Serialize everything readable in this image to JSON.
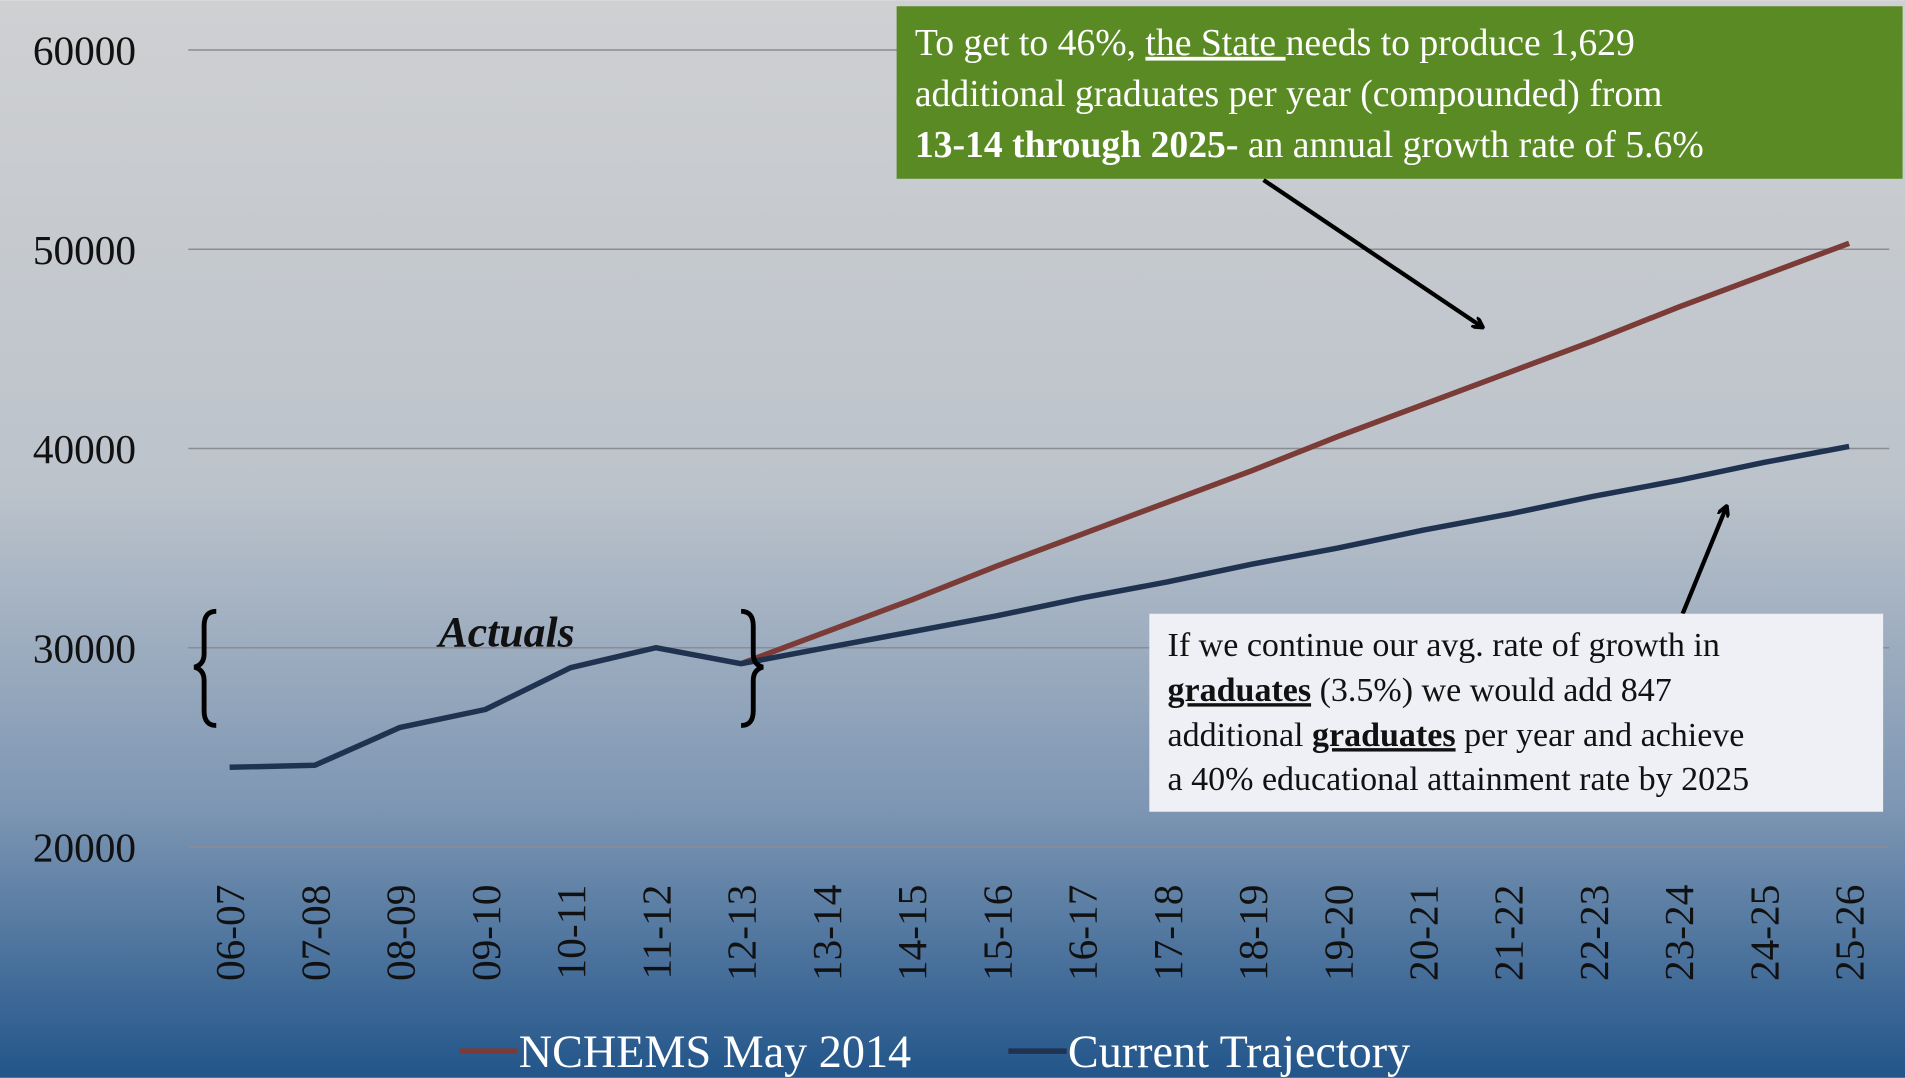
{
  "chart_data": {
    "type": "line",
    "categories": [
      "06-07",
      "07-08",
      "08-09",
      "09-10",
      "10-11",
      "11-12",
      "12-13",
      "13-14",
      "14-15",
      "15-16",
      "16-17",
      "17-18",
      "18-19",
      "19-20",
      "20-21",
      "21-22",
      "22-23",
      "23-24",
      "24-25",
      "25-26"
    ],
    "series": [
      {
        "name": "NCHEMS May 2014",
        "color": "#7b3b36",
        "values": [
          null,
          null,
          null,
          null,
          null,
          null,
          29200,
          30800,
          32400,
          34100,
          35700,
          37300,
          38900,
          40600,
          42200,
          43800,
          45400,
          47100,
          48700,
          50300
        ]
      },
      {
        "name": "Current Trajectory",
        "color": "#1f3350",
        "values": [
          24000,
          24100,
          26000,
          26900,
          29000,
          30000,
          29200,
          30000,
          30800,
          31600,
          32500,
          33300,
          34200,
          35000,
          35900,
          36700,
          37600,
          38400,
          39300,
          40100
        ]
      }
    ],
    "ylim": [
      20000,
      60000
    ],
    "yticks": [
      20000,
      30000,
      40000,
      50000,
      60000
    ],
    "grid": true,
    "legend": "bottom",
    "annotations": {
      "actuals": "Actuals",
      "green_note": [
        "To get to 46%, ",
        "the State ",
        "needs to produce 1,629",
        "additional graduates per year (compounded) from",
        "13-14 through 2025-",
        " an annual growth rate of 5.6%"
      ],
      "white_note": [
        "If we continue our avg. rate of growth in",
        "graduates",
        " (3.5%) we would add 847",
        "additional ",
        "graduates",
        " per year and achieve",
        "a 40% educational attainment rate by 2025"
      ]
    }
  }
}
